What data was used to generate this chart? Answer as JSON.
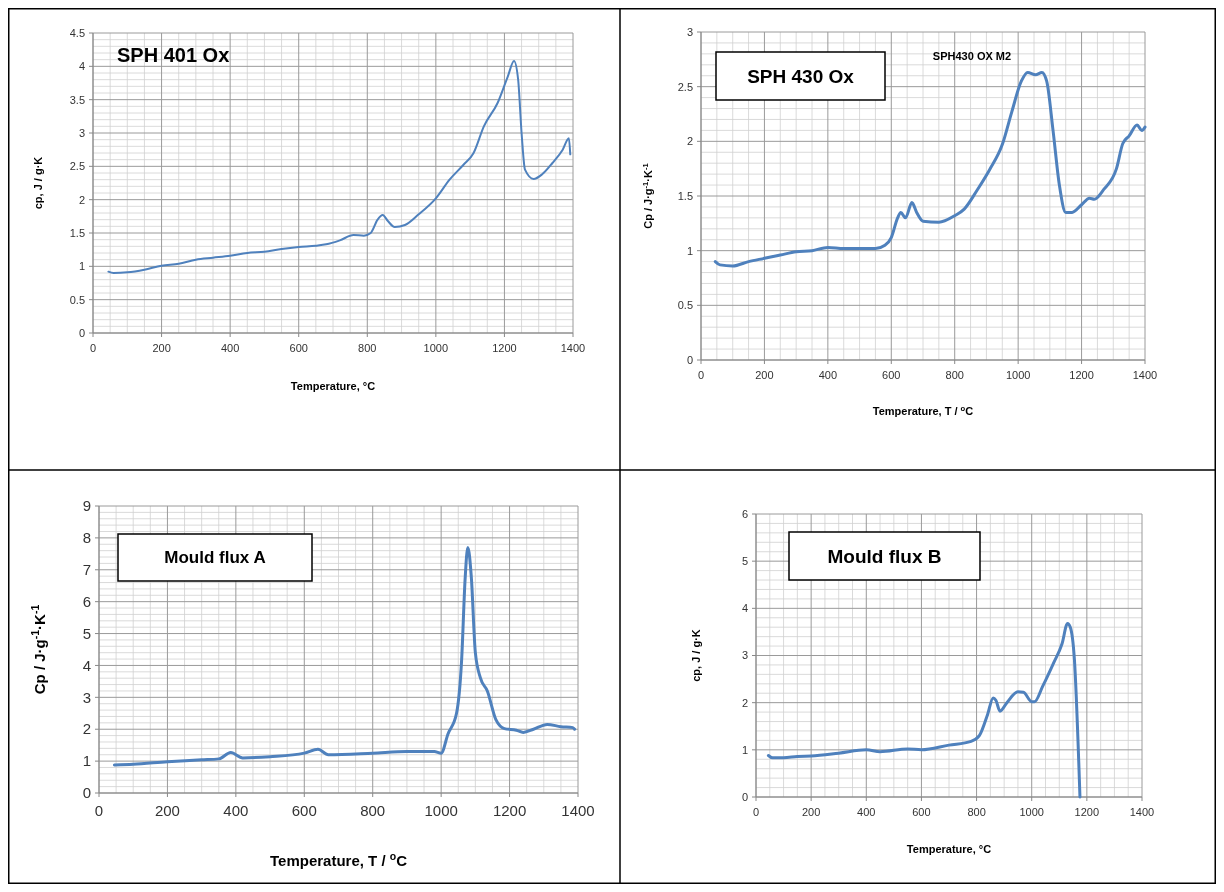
{
  "chart_data": [
    {
      "type": "line",
      "title": "SPH 401 Ox",
      "xlabel": "Temperature, °C",
      "ylabel": "cp, J / g·K",
      "xlim": [
        0,
        1400
      ],
      "xticks": [
        0,
        200,
        400,
        600,
        800,
        1000,
        1200,
        1400
      ],
      "ylim": [
        0,
        4.5
      ],
      "yticks": [
        0,
        0.5,
        1,
        1.5,
        2,
        2.5,
        3,
        3.5,
        4,
        4.5
      ],
      "grid": true,
      "marker": "none",
      "line_style": "solid",
      "series": [
        {
          "color": "#4f81bd",
          "x": [
            45,
            60,
            100,
            150,
            200,
            250,
            300,
            350,
            400,
            450,
            500,
            550,
            600,
            650,
            680,
            720,
            760,
            790,
            810,
            830,
            845,
            860,
            880,
            910,
            950,
            1000,
            1040,
            1080,
            1110,
            1140,
            1180,
            1210,
            1228,
            1240,
            1250,
            1260,
            1285,
            1310,
            1340,
            1370,
            1388,
            1392
          ],
          "values": [
            0.92,
            0.9,
            0.91,
            0.95,
            1.01,
            1.04,
            1.1,
            1.13,
            1.16,
            1.2,
            1.22,
            1.26,
            1.29,
            1.31,
            1.33,
            1.39,
            1.47,
            1.46,
            1.5,
            1.7,
            1.77,
            1.68,
            1.59,
            1.62,
            1.78,
            2.02,
            2.3,
            2.52,
            2.7,
            3.1,
            3.45,
            3.85,
            4.08,
            3.8,
            3.0,
            2.45,
            2.31,
            2.38,
            2.55,
            2.75,
            2.92,
            2.68
          ]
        }
      ]
    },
    {
      "type": "line",
      "title": "SPH 430 Ox",
      "annotations": [
        "SPH430 OX M2"
      ],
      "xlabel": "Temperature, T / $^{o}$C",
      "ylabel": "Cp / J·g$^{-1}$·K$^{-1}$",
      "xlim": [
        0,
        1400
      ],
      "xticks": [
        0,
        200,
        400,
        600,
        800,
        1000,
        1200,
        1400
      ],
      "ylim": [
        0,
        3
      ],
      "yticks": [
        0,
        0.5,
        1,
        1.5,
        2,
        2.5,
        3
      ],
      "grid": true,
      "marker": "none",
      "line_style": "solid",
      "series": [
        {
          "color": "#4f81bd",
          "x": [
            45,
            60,
            100,
            150,
            200,
            250,
            300,
            350,
            400,
            450,
            500,
            550,
            580,
            600,
            620,
            630,
            645,
            665,
            680,
            700,
            750,
            800,
            830,
            870,
            910,
            950,
            980,
            1010,
            1030,
            1055,
            1075,
            1090,
            1110,
            1130,
            1150,
            1170,
            1200,
            1225,
            1240,
            1270,
            1310,
            1330,
            1350,
            1375,
            1390,
            1400
          ],
          "values": [
            0.9,
            0.87,
            0.86,
            0.9,
            0.93,
            0.96,
            0.99,
            1.0,
            1.03,
            1.02,
            1.02,
            1.02,
            1.05,
            1.12,
            1.3,
            1.35,
            1.3,
            1.44,
            1.35,
            1.27,
            1.26,
            1.32,
            1.38,
            1.55,
            1.74,
            1.97,
            2.27,
            2.55,
            2.63,
            2.61,
            2.63,
            2.55,
            2.1,
            1.6,
            1.35,
            1.35,
            1.42,
            1.48,
            1.47,
            1.56,
            1.75,
            1.98,
            2.05,
            2.15,
            2.1,
            2.13
          ]
        }
      ]
    },
    {
      "type": "line",
      "title": "Mould flux A",
      "xlabel": "Temperature, T / $^{o}$C",
      "ylabel": "Cp / J·g$^{-1}$·K$^{-1}$",
      "xlim": [
        0,
        1400
      ],
      "xticks": [
        0,
        200,
        400,
        600,
        800,
        1000,
        1200,
        1400
      ],
      "ylim": [
        0,
        9
      ],
      "yticks": [
        0,
        1,
        2,
        3,
        4,
        5,
        6,
        7,
        8,
        9
      ],
      "grid": true,
      "marker": "none",
      "line_style": "solid",
      "series": [
        {
          "color": "#4f81bd",
          "x": [
            45,
            100,
            200,
            300,
            350,
            385,
            420,
            500,
            600,
            640,
            670,
            800,
            900,
            980,
            1000,
            1020,
            1045,
            1060,
            1070,
            1078,
            1088,
            1100,
            1115,
            1135,
            1160,
            1185,
            1220,
            1240,
            1270,
            1310,
            1350,
            1385,
            1390
          ],
          "values": [
            0.88,
            0.9,
            0.98,
            1.04,
            1.07,
            1.27,
            1.1,
            1.14,
            1.25,
            1.37,
            1.2,
            1.25,
            1.3,
            1.3,
            1.25,
            1.85,
            2.5,
            4.2,
            6.7,
            7.7,
            6.8,
            4.4,
            3.6,
            3.2,
            2.3,
            2.02,
            1.97,
            1.9,
            2.0,
            2.15,
            2.08,
            2.05,
            2.0
          ]
        }
      ]
    },
    {
      "type": "line",
      "title": "Mould flux B",
      "xlabel": "Temperature, °C",
      "ylabel": "cp, J / g·K",
      "xlim": [
        0,
        1400
      ],
      "xticks": [
        0,
        200,
        400,
        600,
        800,
        1000,
        1200,
        1400
      ],
      "ylim": [
        0,
        6
      ],
      "yticks": [
        0,
        1,
        2,
        3,
        4,
        5,
        6
      ],
      "grid": true,
      "marker": "none",
      "line_style": "solid",
      "series": [
        {
          "color": "#4f81bd",
          "x": [
            45,
            60,
            100,
            150,
            200,
            300,
            400,
            450,
            550,
            600,
            700,
            780,
            810,
            840,
            860,
            870,
            885,
            910,
            950,
            970,
            1000,
            1010,
            1040,
            1080,
            1110,
            1130,
            1140,
            1155,
            1175
          ],
          "values": [
            0.88,
            0.83,
            0.83,
            0.86,
            0.87,
            0.93,
            1.0,
            0.96,
            1.02,
            1.0,
            1.1,
            1.18,
            1.3,
            1.75,
            2.1,
            2.05,
            1.82,
            2.0,
            2.23,
            2.22,
            2.02,
            2.02,
            2.35,
            2.85,
            3.25,
            3.68,
            3.6,
            2.9,
            0
          ]
        }
      ]
    }
  ]
}
